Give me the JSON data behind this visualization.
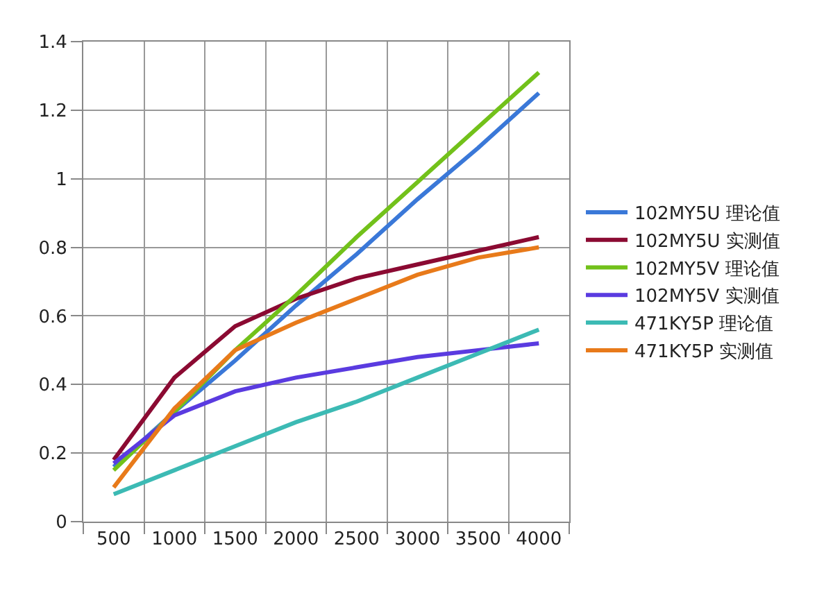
{
  "chart_data": {
    "type": "line",
    "categories": [
      "500",
      "1000",
      "1500",
      "2000",
      "2500",
      "3000",
      "3500",
      "4000"
    ],
    "series": [
      {
        "name": "102MY5U 理论值",
        "color": "#3a78d8",
        "values": [
          0.16,
          0.32,
          0.47,
          0.63,
          0.78,
          0.94,
          1.09,
          1.25
        ]
      },
      {
        "name": "102MY5U 实测值",
        "color": "#8b0a32",
        "values": [
          0.18,
          0.42,
          0.57,
          0.65,
          0.71,
          0.75,
          0.79,
          0.83
        ]
      },
      {
        "name": "102MY5V 理论值",
        "color": "#72c11a",
        "values": [
          0.15,
          0.32,
          0.5,
          0.66,
          0.83,
          0.99,
          1.15,
          1.31
        ]
      },
      {
        "name": "102MY5V 实测值",
        "color": "#5a3be0",
        "values": [
          0.17,
          0.31,
          0.38,
          0.42,
          0.45,
          0.48,
          0.5,
          0.52
        ]
      },
      {
        "name": "471KY5P 理论值",
        "color": "#3cbab4",
        "values": [
          0.08,
          0.15,
          0.22,
          0.29,
          0.35,
          0.42,
          0.49,
          0.56
        ]
      },
      {
        "name": "471KY5P 实测值",
        "color": "#e87a1a",
        "values": [
          0.1,
          0.33,
          0.5,
          0.58,
          0.65,
          0.72,
          0.77,
          0.8
        ]
      }
    ],
    "ylim": [
      0,
      1.4
    ],
    "yticks": [
      0,
      0.2,
      0.4,
      0.6,
      0.8,
      1,
      1.2,
      1.4
    ],
    "grid": true,
    "legend": "right",
    "marker": "none",
    "line_style": "solid"
  }
}
